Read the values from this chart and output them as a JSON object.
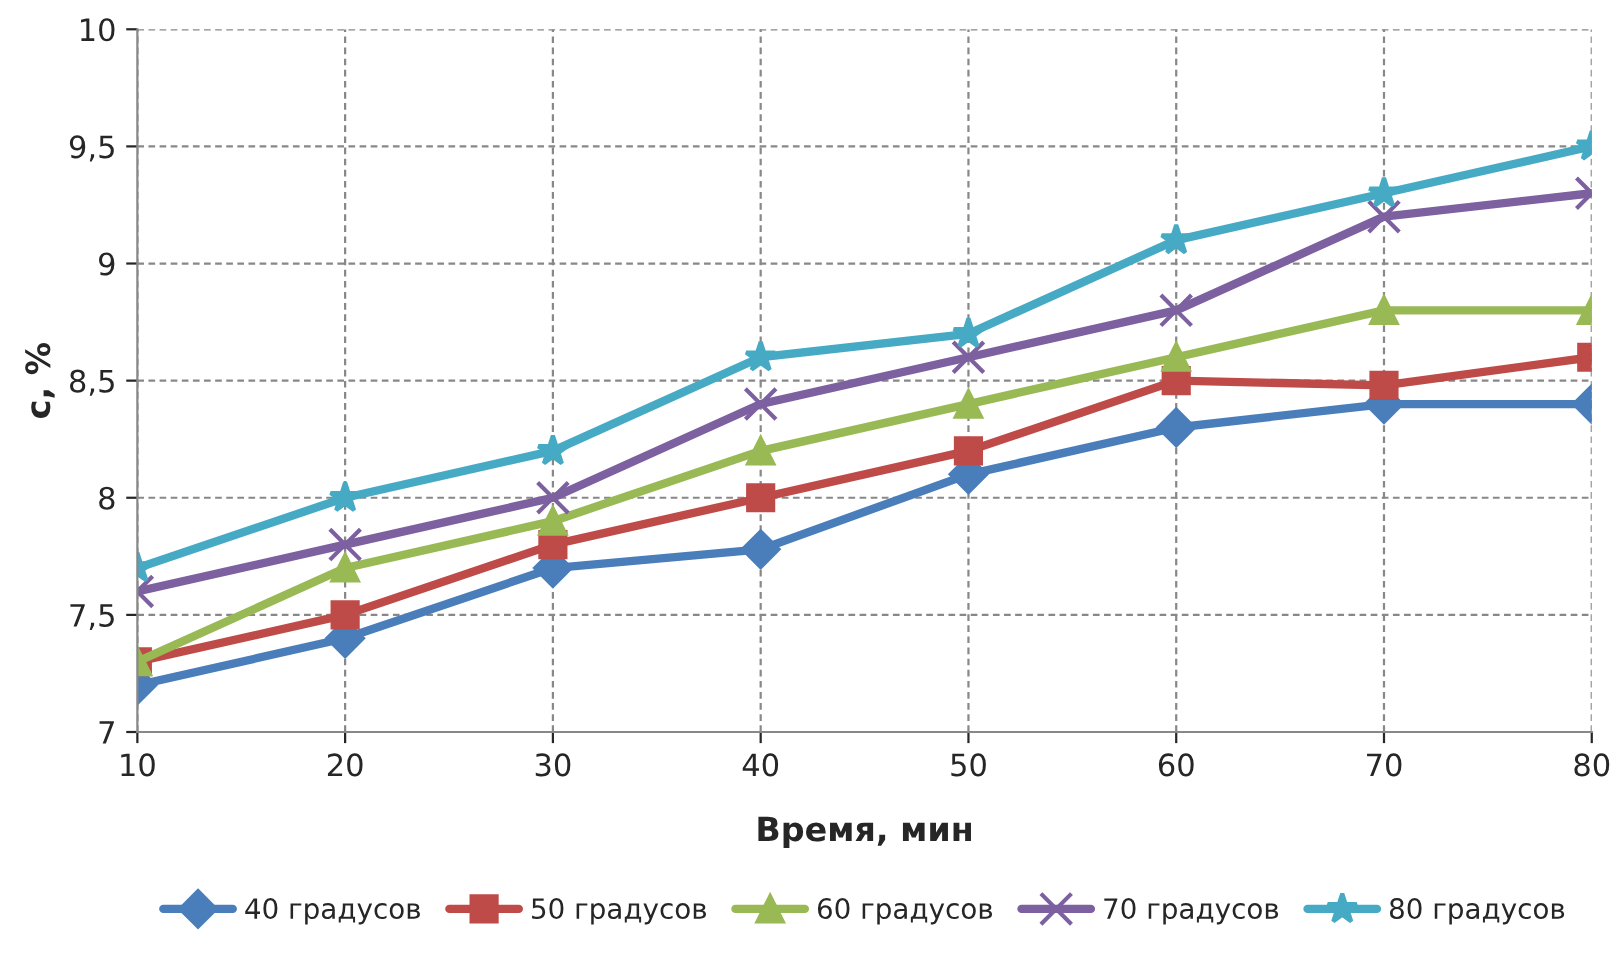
{
  "chart_data": {
    "type": "line",
    "xlabel": "Время, мин",
    "ylabel": "c, %",
    "x": [
      10,
      20,
      30,
      40,
      50,
      60,
      70,
      80
    ],
    "series": [
      {
        "name": "40 градусов",
        "color": "#4a7ebb",
        "marker": "diamond",
        "values": [
          7.2,
          7.4,
          7.7,
          7.78,
          8.1,
          8.3,
          8.4,
          8.4
        ]
      },
      {
        "name": "50 градусов",
        "color": "#be4b48",
        "marker": "square",
        "values": [
          7.3,
          7.5,
          7.8,
          8.0,
          8.2,
          8.5,
          8.48,
          8.6
        ]
      },
      {
        "name": "60 градусов",
        "color": "#98b954",
        "marker": "triangle",
        "values": [
          7.3,
          7.7,
          7.9,
          8.2,
          8.4,
          8.6,
          8.8,
          8.8
        ]
      },
      {
        "name": "70 градусов",
        "color": "#7d60a0",
        "marker": "cross",
        "values": [
          7.6,
          7.8,
          8.0,
          8.4,
          8.6,
          8.8,
          9.2,
          9.3
        ]
      },
      {
        "name": "80 градусов",
        "color": "#46aac5",
        "marker": "star",
        "values": [
          7.7,
          8.0,
          8.2,
          8.6,
          8.7,
          9.1,
          9.3,
          9.5
        ]
      }
    ],
    "xlim": [
      10,
      80
    ],
    "xticks": [
      10,
      20,
      30,
      40,
      50,
      60,
      70,
      80
    ],
    "ylim": [
      7,
      10
    ],
    "yticks": [
      7,
      {
        "value": 7.5,
        "label": "7,5"
      },
      8,
      {
        "value": 8.5,
        "label": "8,5"
      },
      9,
      {
        "value": 9.5,
        "label": "9,5"
      },
      10
    ],
    "grid": true,
    "legend": "bottom",
    "line_style": "solid"
  }
}
